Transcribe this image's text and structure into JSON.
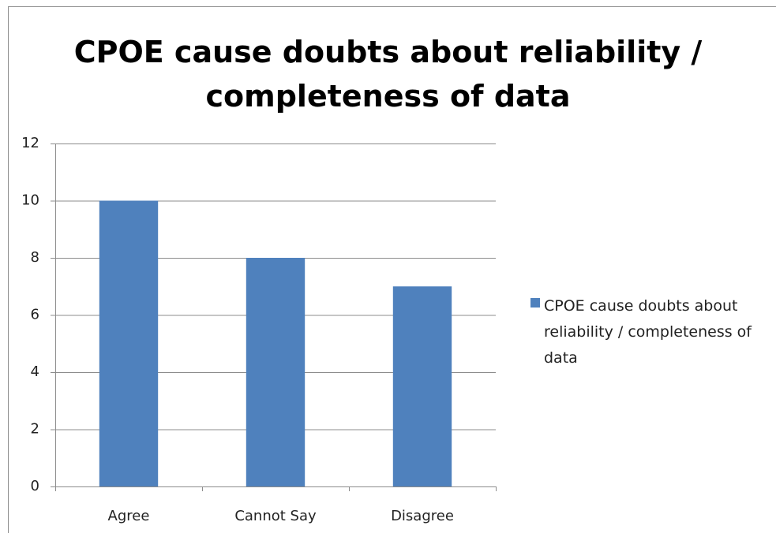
{
  "chart_data": {
    "type": "bar",
    "title": "CPOE cause doubts about reliability / completeness of data",
    "categories": [
      "Agree",
      "Cannot Say",
      "Disagree"
    ],
    "series": [
      {
        "name": "CPOE cause doubts about reliability / completeness of data",
        "color": "#4f81bd",
        "values": [
          10,
          8,
          7
        ]
      }
    ],
    "ylim": [
      0,
      12
    ],
    "yticks": [
      0,
      2,
      4,
      6,
      8,
      10,
      12
    ],
    "grid": true,
    "legend": "right"
  }
}
